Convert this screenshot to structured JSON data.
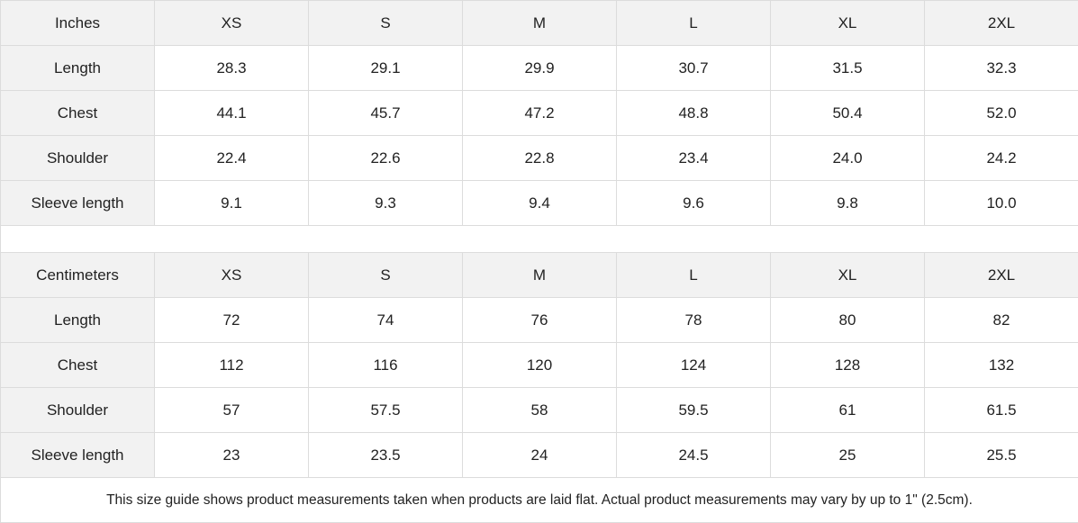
{
  "tables": [
    {
      "unit": "Inches",
      "sizes": [
        "XS",
        "S",
        "M",
        "L",
        "XL",
        "2XL"
      ],
      "rows": [
        {
          "label": "Length",
          "values": [
            "28.3",
            "29.1",
            "29.9",
            "30.7",
            "31.5",
            "32.3"
          ]
        },
        {
          "label": "Chest",
          "values": [
            "44.1",
            "45.7",
            "47.2",
            "48.8",
            "50.4",
            "52.0"
          ]
        },
        {
          "label": "Shoulder",
          "values": [
            "22.4",
            "22.6",
            "22.8",
            "23.4",
            "24.0",
            "24.2"
          ]
        },
        {
          "label": "Sleeve length",
          "values": [
            "9.1",
            "9.3",
            "9.4",
            "9.6",
            "9.8",
            "10.0"
          ]
        }
      ]
    },
    {
      "unit": "Centimeters",
      "sizes": [
        "XS",
        "S",
        "M",
        "L",
        "XL",
        "2XL"
      ],
      "rows": [
        {
          "label": "Length",
          "values": [
            "72",
            "74",
            "76",
            "78",
            "80",
            "82"
          ]
        },
        {
          "label": "Chest",
          "values": [
            "112",
            "116",
            "120",
            "124",
            "128",
            "132"
          ]
        },
        {
          "label": "Shoulder",
          "values": [
            "57",
            "57.5",
            "58",
            "59.5",
            "61",
            "61.5"
          ]
        },
        {
          "label": "Sleeve length",
          "values": [
            "23",
            "23.5",
            "24",
            "24.5",
            "25",
            "25.5"
          ]
        }
      ]
    }
  ],
  "footnote": "This size guide shows product measurements taken when products are laid flat.  Actual product measurements may vary by up to 1\" (2.5cm).",
  "colors": {
    "header_bg": "#f2f2f2",
    "border": "#dcdcdc",
    "text": "#222222"
  }
}
